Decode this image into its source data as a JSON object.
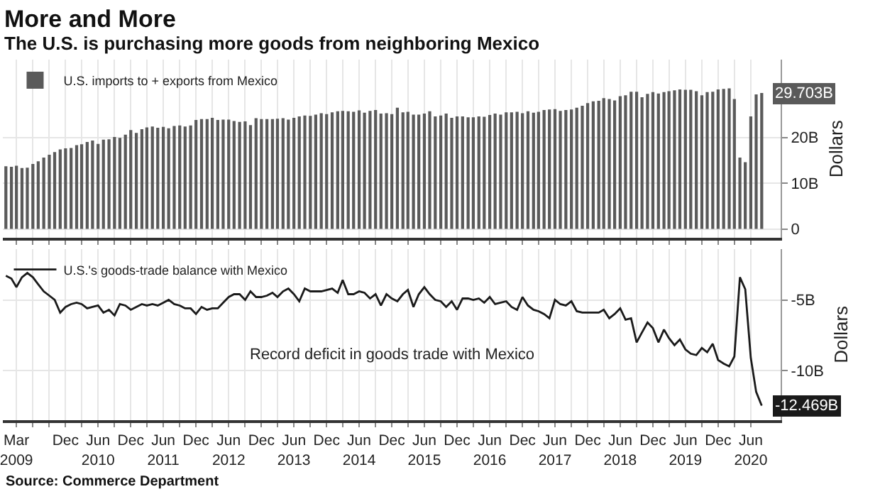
{
  "chart_data": [
    {
      "type": "bar",
      "title": "More and More",
      "subtitle": "The U.S. is purchasing more goods from neighboring Mexico",
      "x": [
        "2009-01",
        "2009-02",
        "2009-03",
        "2009-04",
        "2009-05",
        "2009-06",
        "2009-07",
        "2009-08",
        "2009-09",
        "2009-10",
        "2009-11",
        "2009-12",
        "2010-01",
        "2010-02",
        "2010-03",
        "2010-04",
        "2010-05",
        "2010-06",
        "2010-07",
        "2010-08",
        "2010-09",
        "2010-10",
        "2010-11",
        "2010-12",
        "2011-01",
        "2011-02",
        "2011-03",
        "2011-04",
        "2011-05",
        "2011-06",
        "2011-07",
        "2011-08",
        "2011-09",
        "2011-10",
        "2011-11",
        "2011-12",
        "2012-01",
        "2012-02",
        "2012-03",
        "2012-04",
        "2012-05",
        "2012-06",
        "2012-07",
        "2012-08",
        "2012-09",
        "2012-10",
        "2012-11",
        "2012-12",
        "2013-01",
        "2013-02",
        "2013-03",
        "2013-04",
        "2013-05",
        "2013-06",
        "2013-07",
        "2013-08",
        "2013-09",
        "2013-10",
        "2013-11",
        "2013-12",
        "2014-01",
        "2014-02",
        "2014-03",
        "2014-04",
        "2014-05",
        "2014-06",
        "2014-07",
        "2014-08",
        "2014-09",
        "2014-10",
        "2014-11",
        "2014-12",
        "2015-01",
        "2015-02",
        "2015-03",
        "2015-04",
        "2015-05",
        "2015-06",
        "2015-07",
        "2015-08",
        "2015-09",
        "2015-10",
        "2015-11",
        "2015-12",
        "2016-01",
        "2016-02",
        "2016-03",
        "2016-04",
        "2016-05",
        "2016-06",
        "2016-07",
        "2016-08",
        "2016-09",
        "2016-10",
        "2016-11",
        "2016-12",
        "2017-01",
        "2017-02",
        "2017-03",
        "2017-04",
        "2017-05",
        "2017-06",
        "2017-07",
        "2017-08",
        "2017-09",
        "2017-10",
        "2017-11",
        "2017-12",
        "2018-01",
        "2018-02",
        "2018-03",
        "2018-04",
        "2018-05",
        "2018-06",
        "2018-07",
        "2018-08",
        "2018-09",
        "2018-10",
        "2018-11",
        "2018-12",
        "2019-01",
        "2019-02",
        "2019-03",
        "2019-04",
        "2019-05",
        "2019-06",
        "2019-07",
        "2019-08",
        "2019-09",
        "2019-10",
        "2019-11",
        "2019-12",
        "2020-01",
        "2020-02",
        "2020-03",
        "2020-04",
        "2020-05",
        "2020-06",
        "2020-07",
        "2020-08"
      ],
      "series": [
        {
          "name": "U.S. imports to + exports from Mexico",
          "color": "#5a5a5a",
          "values": [
            13.7,
            13.6,
            13.8,
            13.3,
            13.4,
            14.2,
            14.8,
            15.6,
            16.2,
            16.8,
            17.4,
            17.6,
            17.7,
            18.3,
            18.5,
            19.0,
            19.3,
            18.6,
            19.5,
            19.6,
            20.1,
            19.9,
            20.6,
            21.6,
            21.0,
            21.8,
            22.2,
            22.4,
            22.1,
            22.3,
            22.0,
            22.5,
            22.6,
            22.4,
            22.6,
            23.8,
            24.0,
            24.0,
            24.3,
            23.8,
            23.9,
            23.9,
            23.6,
            23.4,
            23.5,
            22.7,
            24.2,
            24.0,
            24.0,
            24.0,
            24.1,
            24.2,
            23.9,
            24.3,
            24.6,
            24.8,
            24.7,
            25.0,
            25.3,
            25.1,
            25.5,
            25.7,
            25.8,
            25.7,
            25.6,
            25.9,
            25.4,
            25.8,
            26.0,
            25.2,
            25.3,
            25.1,
            26.5,
            25.5,
            25.6,
            25.0,
            25.0,
            25.2,
            25.7,
            24.6,
            24.8,
            25.2,
            24.3,
            24.6,
            24.6,
            24.4,
            24.4,
            24.6,
            24.5,
            24.9,
            25.2,
            25.0,
            25.5,
            25.5,
            25.6,
            25.3,
            25.7,
            25.4,
            25.6,
            26.0,
            26.1,
            26.2,
            25.8,
            26.0,
            26.1,
            26.5,
            26.9,
            27.5,
            27.9,
            28.0,
            28.6,
            28.4,
            28.1,
            29.0,
            29.2,
            30.0,
            30.0,
            28.8,
            29.5,
            29.9,
            29.6,
            29.9,
            30.1,
            30.3,
            30.5,
            30.4,
            30.4,
            30.1,
            29.2,
            29.9,
            30.0,
            30.5,
            30.6,
            30.7,
            28.4,
            15.6,
            14.6,
            24.6,
            29.4,
            29.703
          ],
          "value_labels": [
            null,
            null,
            null,
            null,
            null,
            null,
            null,
            null,
            null,
            null,
            null,
            null,
            null,
            null,
            null,
            null,
            null,
            null,
            null,
            null,
            null,
            null,
            null,
            null,
            null,
            null,
            null,
            null,
            null,
            null,
            null,
            null,
            null,
            null,
            null,
            null,
            null,
            null,
            null,
            null,
            null,
            null,
            null,
            null,
            null,
            null,
            null,
            null,
            null,
            null,
            null,
            null,
            null,
            null,
            null,
            null,
            null,
            null,
            null,
            null,
            null,
            null,
            null,
            null,
            null,
            null,
            null,
            null,
            null,
            null,
            null,
            null,
            null,
            null,
            null,
            null,
            null,
            null,
            null,
            null,
            null,
            null,
            null,
            null,
            null,
            null,
            null,
            null,
            null,
            null,
            null,
            null,
            null,
            null,
            null,
            null,
            null,
            null,
            null,
            null,
            null,
            null,
            null,
            null,
            null,
            null,
            null,
            null,
            null,
            null,
            null,
            null,
            null,
            null,
            null,
            null,
            null,
            null,
            null,
            null,
            null,
            null,
            null,
            null,
            null,
            null,
            null,
            null,
            null,
            null,
            null,
            null,
            null,
            null,
            null,
            null,
            null,
            null,
            null,
            null
          ]
        }
      ],
      "xlim": [
        "2008-12-15",
        "2020-11-15"
      ],
      "xticks": [
        {
          "value": "2009-03",
          "label": null
        },
        {
          "value": "2009-06",
          "label": null
        },
        {
          "value": "2009-09",
          "label": null
        },
        {
          "value": "2009-12",
          "label": null
        },
        {
          "value": "2010-03",
          "label": null
        },
        {
          "value": "2010-06",
          "label": null
        },
        {
          "value": "2010-09",
          "label": null
        },
        {
          "value": "2010-12",
          "label": null
        },
        {
          "value": "2011-03",
          "label": null
        },
        {
          "value": "2011-06",
          "label": null
        },
        {
          "value": "2011-09",
          "label": null
        },
        {
          "value": "2011-12",
          "label": null
        },
        {
          "value": "2012-03",
          "label": null
        },
        {
          "value": "2012-06",
          "label": null
        },
        {
          "value": "2012-09",
          "label": null
        },
        {
          "value": "2012-12",
          "label": null
        },
        {
          "value": "2013-03",
          "label": null
        },
        {
          "value": "2013-06",
          "label": null
        },
        {
          "value": "2013-09",
          "label": null
        },
        {
          "value": "2013-12",
          "label": null
        },
        {
          "value": "2014-03",
          "label": null
        },
        {
          "value": "2014-06",
          "label": null
        },
        {
          "value": "2014-09",
          "label": null
        },
        {
          "value": "2014-12",
          "label": null
        },
        {
          "value": "2015-03",
          "label": null
        },
        {
          "value": "2015-06",
          "label": null
        },
        {
          "value": "2015-09",
          "label": null
        },
        {
          "value": "2015-12",
          "label": null
        },
        {
          "value": "2016-03",
          "label": null
        },
        {
          "value": "2016-06",
          "label": null
        },
        {
          "value": "2016-09",
          "label": null
        },
        {
          "value": "2016-12",
          "label": null
        },
        {
          "value": "2017-03",
          "label": null
        },
        {
          "value": "2017-06",
          "label": null
        },
        {
          "value": "2017-09",
          "label": null
        },
        {
          "value": "2017-12",
          "label": null
        },
        {
          "value": "2018-03",
          "label": null
        },
        {
          "value": "2018-06",
          "label": null
        },
        {
          "value": "2018-09",
          "label": null
        },
        {
          "value": "2018-12",
          "label": null
        },
        {
          "value": "2019-03",
          "label": null
        },
        {
          "value": "2019-06",
          "label": null
        },
        {
          "value": "2019-09",
          "label": null
        },
        {
          "value": "2019-12",
          "label": null
        },
        {
          "value": "2020-03",
          "label": null
        },
        {
          "value": "2020-06",
          "label": null
        }
      ],
      "ylim": [
        -2,
        37
      ],
      "yticks": [
        0,
        {
          "value": 10,
          "label": "10B"
        },
        {
          "value": 20,
          "label": "20B"
        }
      ],
      "ylabel": "Dollars",
      "grid": true,
      "legend": "top left",
      "tick_labels": "y",
      "annotations": [
        {
          "text": "29.703B",
          "x": "2020-08",
          "y": 29.703
        }
      ]
    },
    {
      "type": "line",
      "x": [
        "2009-01",
        "2009-02",
        "2009-03",
        "2009-04",
        "2009-05",
        "2009-06",
        "2009-07",
        "2009-08",
        "2009-09",
        "2009-10",
        "2009-11",
        "2009-12",
        "2010-01",
        "2010-02",
        "2010-03",
        "2010-04",
        "2010-05",
        "2010-06",
        "2010-07",
        "2010-08",
        "2010-09",
        "2010-10",
        "2010-11",
        "2010-12",
        "2011-01",
        "2011-02",
        "2011-03",
        "2011-04",
        "2011-05",
        "2011-06",
        "2011-07",
        "2011-08",
        "2011-09",
        "2011-10",
        "2011-11",
        "2011-12",
        "2012-01",
        "2012-02",
        "2012-03",
        "2012-04",
        "2012-05",
        "2012-06",
        "2012-07",
        "2012-08",
        "2012-09",
        "2012-10",
        "2012-11",
        "2012-12",
        "2013-01",
        "2013-02",
        "2013-03",
        "2013-04",
        "2013-05",
        "2013-06",
        "2013-07",
        "2013-08",
        "2013-09",
        "2013-10",
        "2013-11",
        "2013-12",
        "2014-01",
        "2014-02",
        "2014-03",
        "2014-04",
        "2014-05",
        "2014-06",
        "2014-07",
        "2014-08",
        "2014-09",
        "2014-10",
        "2014-11",
        "2014-12",
        "2015-01",
        "2015-02",
        "2015-03",
        "2015-04",
        "2015-05",
        "2015-06",
        "2015-07",
        "2015-08",
        "2015-09",
        "2015-10",
        "2015-11",
        "2015-12",
        "2016-01",
        "2016-02",
        "2016-03",
        "2016-04",
        "2016-05",
        "2016-06",
        "2016-07",
        "2016-08",
        "2016-09",
        "2016-10",
        "2016-11",
        "2016-12",
        "2017-01",
        "2017-02",
        "2017-03",
        "2017-04",
        "2017-05",
        "2017-06",
        "2017-07",
        "2017-08",
        "2017-09",
        "2017-10",
        "2017-11",
        "2017-12",
        "2018-01",
        "2018-02",
        "2018-03",
        "2018-04",
        "2018-05",
        "2018-06",
        "2018-07",
        "2018-08",
        "2018-09",
        "2018-10",
        "2018-11",
        "2018-12",
        "2019-01",
        "2019-02",
        "2019-03",
        "2019-04",
        "2019-05",
        "2019-06",
        "2019-07",
        "2019-08",
        "2019-09",
        "2019-10",
        "2019-11",
        "2019-12",
        "2020-01",
        "2020-02",
        "2020-03",
        "2020-04",
        "2020-05",
        "2020-06",
        "2020-07",
        "2020-08"
      ],
      "series": [
        {
          "name": "U.S.'s goods-trade balance with Mexico",
          "color": "#1a1a1a",
          "values": [
            -3.3,
            -3.5,
            -4.1,
            -3.4,
            -3.1,
            -3.4,
            -3.9,
            -4.4,
            -4.7,
            -5.0,
            -5.9,
            -5.5,
            -5.3,
            -5.2,
            -5.3,
            -5.6,
            -5.5,
            -5.4,
            -5.9,
            -5.7,
            -6.1,
            -5.3,
            -5.4,
            -5.7,
            -5.5,
            -5.3,
            -5.4,
            -5.3,
            -5.4,
            -5.2,
            -5.0,
            -5.3,
            -5.4,
            -5.6,
            -5.6,
            -6.0,
            -5.5,
            -5.7,
            -5.6,
            -5.6,
            -5.2,
            -4.8,
            -4.6,
            -4.6,
            -5.0,
            -4.4,
            -4.8,
            -4.8,
            -4.7,
            -4.5,
            -4.8,
            -4.4,
            -4.2,
            -4.6,
            -5.1,
            -4.2,
            -4.4,
            -4.4,
            -4.4,
            -4.3,
            -4.2,
            -4.5,
            -3.6,
            -4.6,
            -4.6,
            -4.4,
            -4.5,
            -4.9,
            -4.6,
            -5.4,
            -4.6,
            -4.9,
            -5.1,
            -4.6,
            -4.3,
            -5.5,
            -4.6,
            -4.1,
            -4.6,
            -5.0,
            -5.1,
            -5.5,
            -5.1,
            -5.7,
            -4.9,
            -4.9,
            -5.0,
            -4.9,
            -5.2,
            -4.8,
            -5.3,
            -5.2,
            -5.1,
            -5.5,
            -5.7,
            -4.8,
            -5.4,
            -5.7,
            -5.8,
            -6.0,
            -6.3,
            -5.0,
            -5.3,
            -5.4,
            -5.1,
            -5.8,
            -5.9,
            -5.9,
            -5.9,
            -5.9,
            -5.7,
            -6.3,
            -6.0,
            -5.6,
            -6.4,
            -6.3,
            -8.0,
            -7.3,
            -6.6,
            -7.0,
            -8.0,
            -7.1,
            -7.7,
            -8.2,
            -7.8,
            -8.5,
            -8.8,
            -8.9,
            -8.4,
            -8.7,
            -8.1,
            -9.25,
            -9.5,
            -9.7,
            -9.0,
            -3.4,
            -4.25,
            -9.1,
            -11.5,
            -12.469
          ],
          "value_labels": [
            null,
            null,
            null,
            null,
            null,
            null,
            null,
            null,
            null,
            null,
            null,
            null,
            null,
            null,
            null,
            null,
            null,
            null,
            null,
            null,
            null,
            null,
            null,
            null,
            null,
            null,
            null,
            null,
            null,
            null,
            null,
            null,
            null,
            null,
            null,
            null,
            null,
            null,
            null,
            null,
            null,
            null,
            null,
            null,
            null,
            null,
            null,
            null,
            null,
            null,
            null,
            null,
            null,
            null,
            null,
            null,
            null,
            null,
            null,
            null,
            null,
            null,
            null,
            null,
            null,
            null,
            null,
            null,
            null,
            null,
            null,
            null,
            null,
            null,
            null,
            null,
            null,
            null,
            null,
            null,
            null,
            null,
            null,
            null,
            null,
            null,
            null,
            null,
            null,
            null,
            null,
            null,
            null,
            null,
            null,
            null,
            null,
            null,
            null,
            null,
            null,
            null,
            null,
            null,
            null,
            null,
            null,
            null,
            null,
            null,
            null,
            null,
            null,
            null,
            null,
            null,
            null,
            null,
            null,
            null,
            null,
            null,
            null,
            null,
            null,
            null,
            null,
            null,
            null,
            null,
            null,
            null,
            null,
            null,
            null,
            null,
            null,
            null,
            null,
            "-12.469B"
          ]
        }
      ],
      "xlim": [
        "2008-12-15",
        "2020-11-15"
      ],
      "xticks": [
        {
          "value": "2009-03",
          "label": "Mar\n2009"
        },
        {
          "value": "2009-06",
          "label": null
        },
        {
          "value": "2009-09",
          "label": null
        },
        {
          "value": "2009-12",
          "label": "Dec"
        },
        {
          "value": "2010-03",
          "label": null
        },
        {
          "value": "2010-06",
          "label": "Jun\n2010"
        },
        {
          "value": "2010-09",
          "label": null
        },
        {
          "value": "2010-12",
          "label": "Dec"
        },
        {
          "value": "2011-03",
          "label": null
        },
        {
          "value": "2011-06",
          "label": "Jun\n2011"
        },
        {
          "value": "2011-09",
          "label": null
        },
        {
          "value": "2011-12",
          "label": "Dec"
        },
        {
          "value": "2012-03",
          "label": null
        },
        {
          "value": "2012-06",
          "label": "Jun\n2012"
        },
        {
          "value": "2012-09",
          "label": null
        },
        {
          "value": "2012-12",
          "label": "Dec"
        },
        {
          "value": "2013-03",
          "label": null
        },
        {
          "value": "2013-06",
          "label": "Jun\n2013"
        },
        {
          "value": "2013-09",
          "label": null
        },
        {
          "value": "2013-12",
          "label": "Dec"
        },
        {
          "value": "2014-03",
          "label": null
        },
        {
          "value": "2014-06",
          "label": "Jun\n2014"
        },
        {
          "value": "2014-09",
          "label": null
        },
        {
          "value": "2014-12",
          "label": "Dec"
        },
        {
          "value": "2015-03",
          "label": null
        },
        {
          "value": "2015-06",
          "label": "Jun\n2015"
        },
        {
          "value": "2015-09",
          "label": null
        },
        {
          "value": "2015-12",
          "label": "Dec"
        },
        {
          "value": "2016-03",
          "label": null
        },
        {
          "value": "2016-06",
          "label": "Jun\n2016"
        },
        {
          "value": "2016-09",
          "label": null
        },
        {
          "value": "2016-12",
          "label": "Dec"
        },
        {
          "value": "2017-03",
          "label": null
        },
        {
          "value": "2017-06",
          "label": "Jun\n2017"
        },
        {
          "value": "2017-09",
          "label": null
        },
        {
          "value": "2017-12",
          "label": "Dec"
        },
        {
          "value": "2018-03",
          "label": null
        },
        {
          "value": "2018-06",
          "label": "Jun\n2018"
        },
        {
          "value": "2018-09",
          "label": null
        },
        {
          "value": "2018-12",
          "label": "Dec"
        },
        {
          "value": "2019-03",
          "label": null
        },
        {
          "value": "2019-06",
          "label": "Jun\n2019"
        },
        {
          "value": "2019-09",
          "label": null
        },
        {
          "value": "2019-12",
          "label": "Dec"
        },
        {
          "value": "2020-03",
          "label": null
        },
        {
          "value": "2020-06",
          "label": "Jun\n2020"
        }
      ],
      "ylim": [
        -13.5,
        -1.4
      ],
      "yticks": [
        {
          "value": -5,
          "label": "-5B"
        },
        {
          "value": -10,
          "label": "-10B"
        }
      ],
      "ylabel": "Dollars",
      "grid": true,
      "legend": "top left",
      "annotations": [
        "Record deficit in goods trade with Mexico",
        "Source: Commerce Department"
      ]
    }
  ]
}
